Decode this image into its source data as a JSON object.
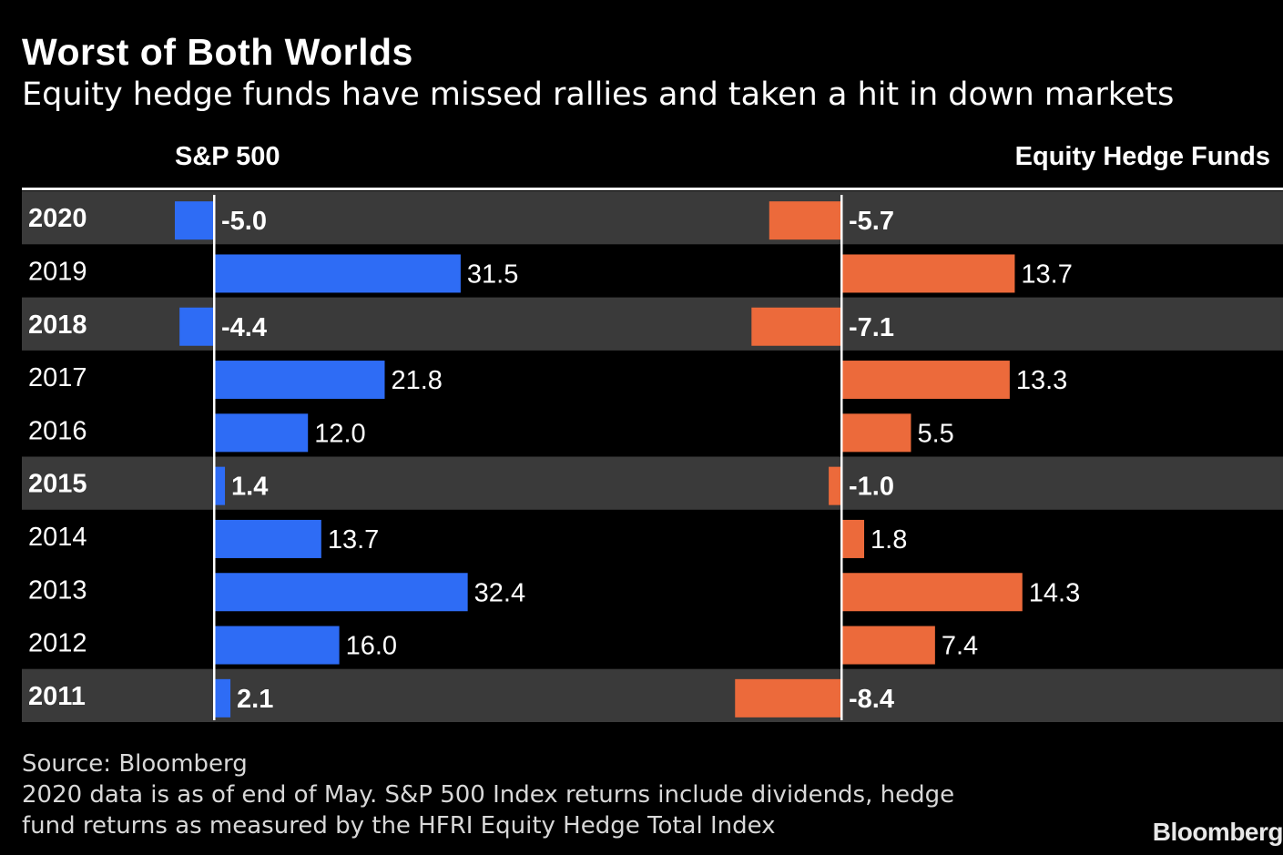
{
  "chart_data": {
    "type": "bar",
    "title": "Worst of Both Worlds",
    "subtitle": "Equity hedge funds have missed rallies and taken a hit in down markets",
    "categories": [
      "2020",
      "2019",
      "2018",
      "2017",
      "2016",
      "2015",
      "2014",
      "2013",
      "2012",
      "2011"
    ],
    "highlighted": [
      "2020",
      "2018",
      "2015",
      "2011"
    ],
    "series": [
      {
        "name": "S&P 500",
        "color": "#2e6cf5",
        "values": [
          -5.0,
          31.5,
          -4.4,
          21.8,
          12.0,
          1.4,
          13.7,
          32.4,
          16.0,
          2.1
        ],
        "labels": [
          "-5.0",
          "31.5",
          "-4.4",
          "21.8",
          "12.0",
          "1.4",
          "13.7",
          "32.4",
          "16.0",
          "2.1"
        ]
      },
      {
        "name": "Equity Hedge Funds",
        "color": "#ec6a3b",
        "values": [
          -5.7,
          13.7,
          -7.1,
          13.3,
          5.5,
          -1.0,
          1.8,
          14.3,
          7.4,
          -8.4
        ],
        "labels": [
          "-5.7",
          "13.7",
          "-7.1",
          "13.3",
          "5.5",
          "-1.0",
          "1.8",
          "14.3",
          "7.4",
          "-8.4"
        ]
      }
    ]
  },
  "header": {
    "title": "Worst of Both Worlds",
    "subtitle": "Equity hedge funds have missed rallies and taken a hit in down markets",
    "left_col": "S&P 500",
    "right_col": "Equity Hedge Funds"
  },
  "footer": {
    "source": "Source: Bloomberg",
    "note1": "2020 data is as of end of May. S&P 500 Index returns include dividends, hedge",
    "note2": "fund returns as measured by the HFRI Equity Hedge Total Index",
    "logo": "Bloomberg"
  }
}
